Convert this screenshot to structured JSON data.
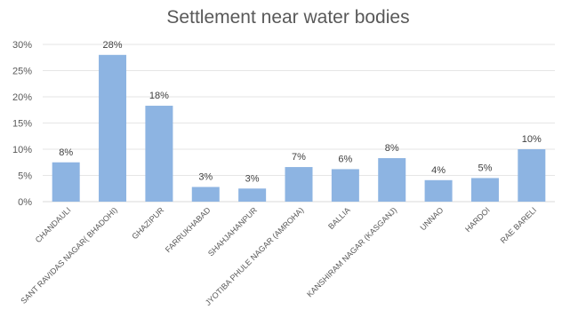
{
  "chart_data": {
    "type": "bar",
    "title": "Settlement near water bodies",
    "categories": [
      "CHANDAULI",
      "SANT RAVIDAS NAGAR( BHADOHI)",
      "GHAZIPUR",
      "FARRUKHABAD",
      "SHAHJAHANPUR",
      "JYOTIBA PHULE NAGAR (AMROHA)",
      "BALLIA",
      "KANSHIRAM NAGAR (KASGANJ)",
      "UNNAO",
      "HARDOI",
      "RAE BARELI"
    ],
    "values": [
      7.5,
      28,
      18.3,
      2.8,
      2.5,
      6.6,
      6.2,
      8.3,
      4.1,
      4.5,
      10
    ],
    "data_labels": [
      "8%",
      "28%",
      "18%",
      "3%",
      "3%",
      "7%",
      "6%",
      "8%",
      "4%",
      "5%",
      "10%"
    ],
    "y_ticks": [
      "0%",
      "5%",
      "10%",
      "15%",
      "20%",
      "25%",
      "30%"
    ],
    "ylim": [
      0,
      30
    ],
    "xlabel": "",
    "ylabel": "",
    "grid": true,
    "colors": {
      "bar": "#8db4e2",
      "text": "#595959",
      "grid": "#e6e6e6"
    }
  }
}
